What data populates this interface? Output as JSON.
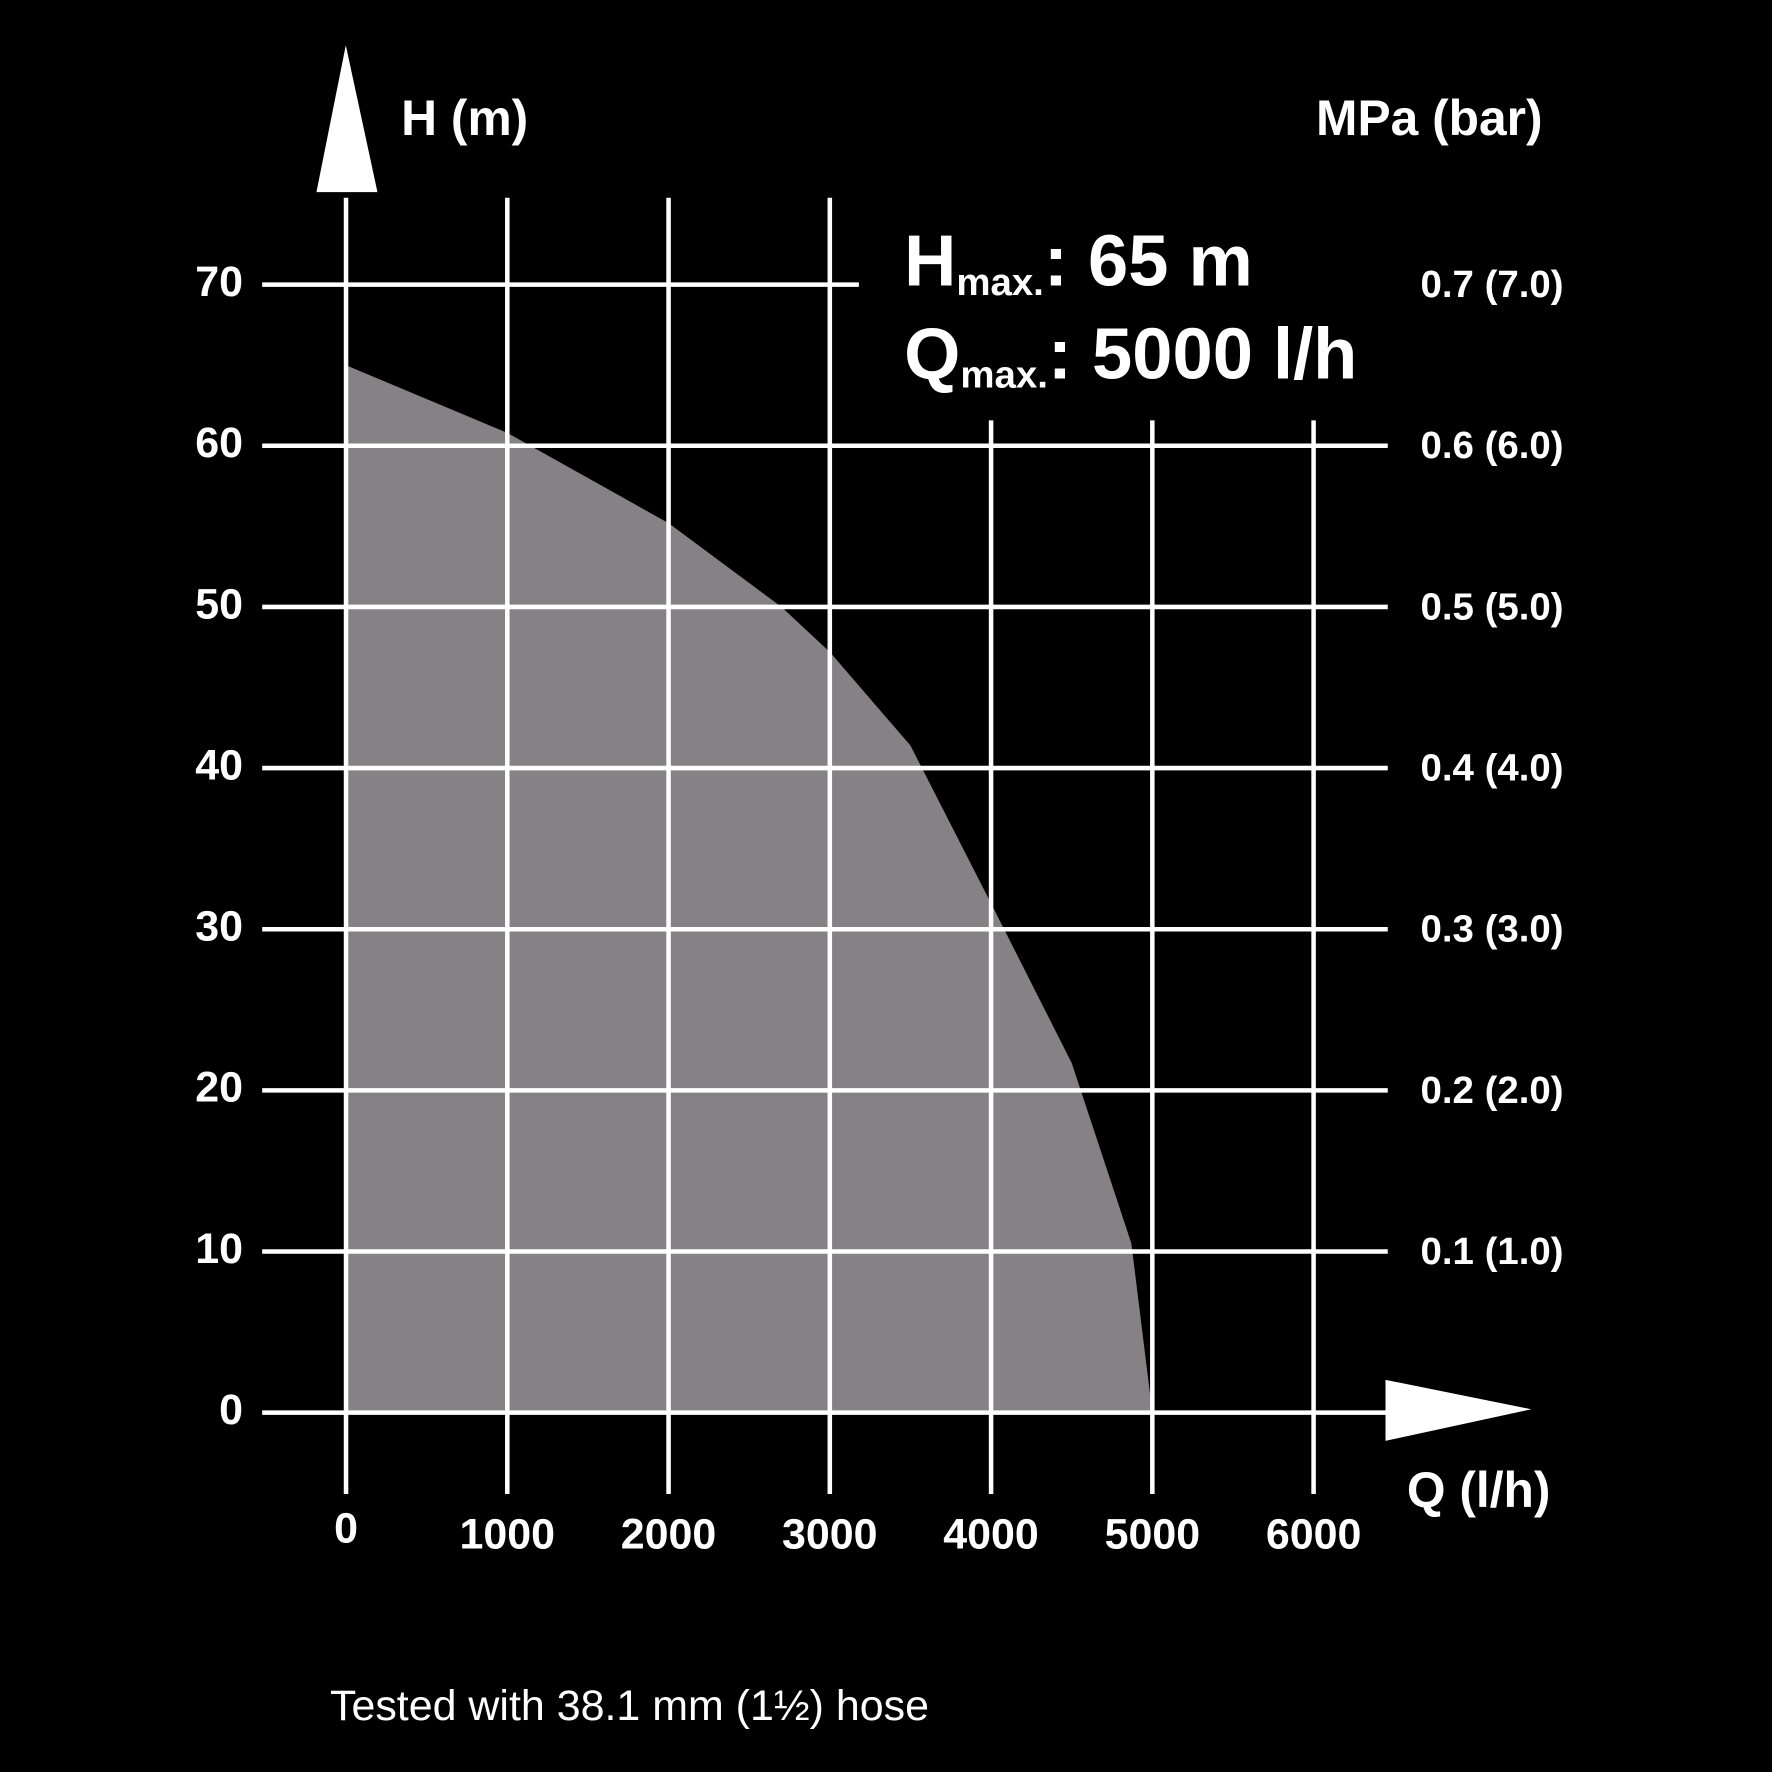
{
  "chart_data": {
    "type": "area",
    "y_label": "H (m)",
    "y2_label": "MPa (bar)",
    "x_label": "Q (l/h)",
    "x": [
      0,
      1000,
      2000,
      2700,
      3000,
      3500,
      4000,
      4500,
      4870,
      5000
    ],
    "series": [
      {
        "color": "#858184",
        "values": [
          65,
          60.8,
          55.2,
          50,
          47.2,
          41.4,
          31.6,
          21.7,
          10.5,
          0
        ]
      }
    ],
    "xlim": [
      -520,
      7350
    ],
    "xticks": [
      0,
      1000,
      2000,
      3000,
      4000,
      5000,
      6000
    ],
    "ylim": [
      0,
      85
    ],
    "yticks": [
      0,
      10,
      20,
      30,
      40,
      50,
      60,
      70
    ],
    "y2lim": [
      0,
      0.85
    ],
    "y2ticks": [
      {
        "value": 0.1,
        "label": "0.1 (1.0)"
      },
      {
        "value": 0.2,
        "label": "0.2 (2.0)"
      },
      {
        "value": 0.3,
        "label": "0.3 (3.0)"
      },
      {
        "value": 0.4,
        "label": "0.4 (4.0)"
      },
      {
        "value": 0.5,
        "label": "0.5 (5.0)"
      },
      {
        "value": 0.6,
        "label": "0.6 (6.0)"
      },
      {
        "value": 0.7,
        "label": "0.7 (7.0)"
      }
    ],
    "grid": true,
    "annotations": [
      {
        "main": "H",
        "sub": "max.",
        "text": ": 65 m"
      },
      {
        "main": "Q",
        "sub": "max.",
        "text": ": 5000 l/h"
      }
    ],
    "footnote": "Tested with 38.1 mm (1½) hose"
  }
}
